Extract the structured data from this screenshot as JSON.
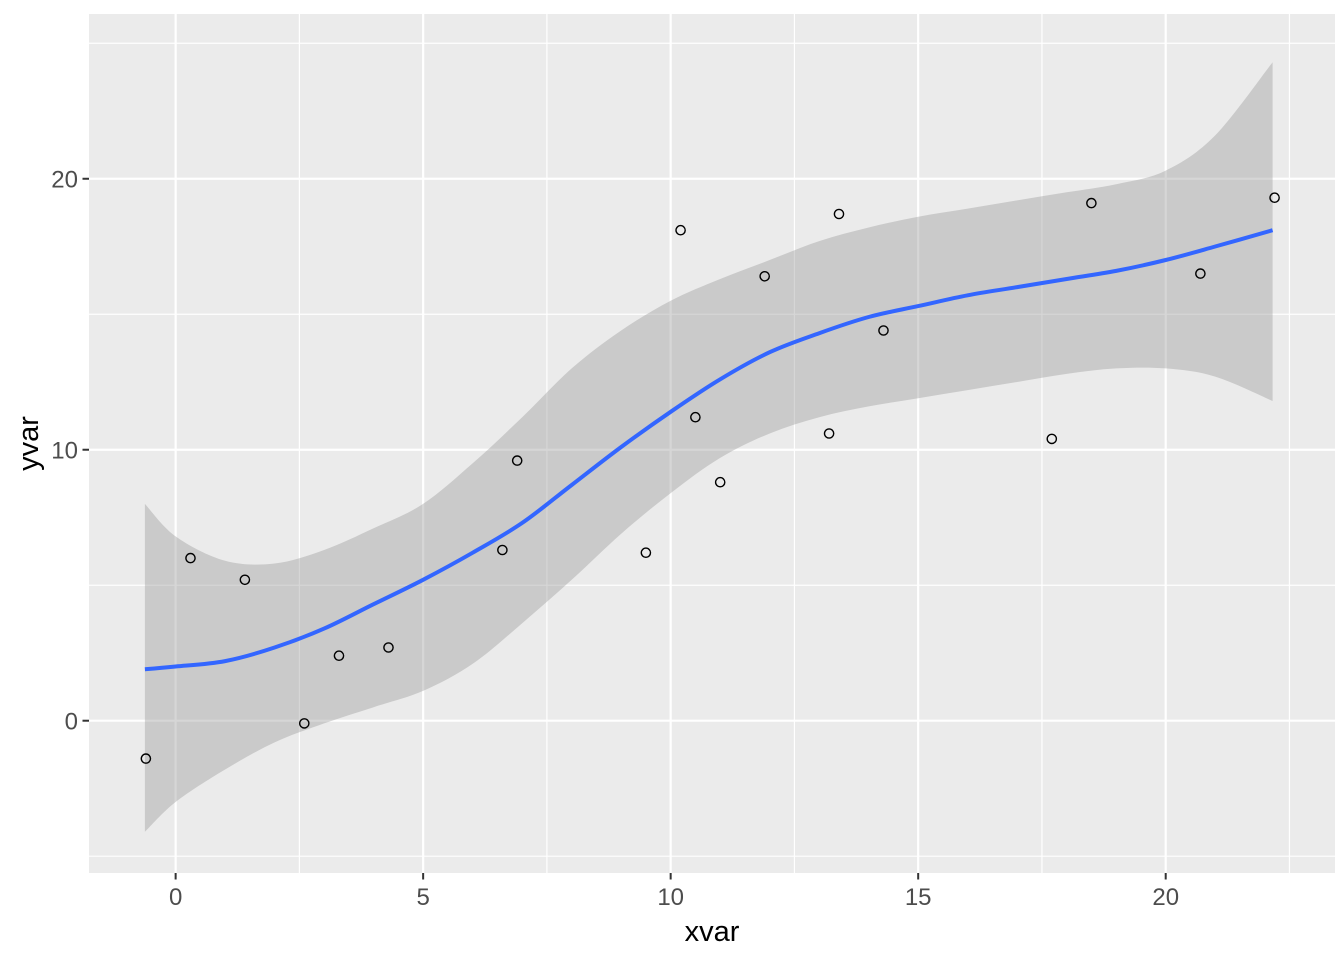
{
  "chart_data": {
    "type": "scatter",
    "subtype": "scatter-with-loess-smooth-and-confidence-band",
    "title": "",
    "xlabel": "xvar",
    "ylabel": "yvar",
    "legend": "none",
    "grid": "on",
    "xlim": [
      -1.75,
      23.42
    ],
    "ylim": [
      -5.62,
      26.08
    ],
    "x_ticks": [
      0,
      5,
      10,
      15,
      20
    ],
    "x_tick_labels": [
      "0",
      "5",
      "10",
      "15",
      "20"
    ],
    "x_minor_ticks": [
      2.5,
      7.5,
      12.5,
      17.5,
      22.5
    ],
    "y_ticks": [
      0,
      10,
      20
    ],
    "y_tick_labels": [
      "0",
      "10",
      "20"
    ],
    "y_minor_ticks": [
      -5,
      5,
      15,
      25
    ],
    "points": [
      [
        -0.6,
        -1.4
      ],
      [
        0.3,
        6.0
      ],
      [
        1.4,
        5.2
      ],
      [
        2.6,
        -0.1
      ],
      [
        3.3,
        2.4
      ],
      [
        4.3,
        2.7
      ],
      [
        6.6,
        6.3
      ],
      [
        6.9,
        9.6
      ],
      [
        9.5,
        6.2
      ],
      [
        10.2,
        18.1
      ],
      [
        10.5,
        11.2
      ],
      [
        11.0,
        8.8
      ],
      [
        11.9,
        16.4
      ],
      [
        13.2,
        10.6
      ],
      [
        13.4,
        18.7
      ],
      [
        14.3,
        14.4
      ],
      [
        17.7,
        10.4
      ],
      [
        18.5,
        19.1
      ],
      [
        20.7,
        16.5
      ],
      [
        22.2,
        19.3
      ]
    ],
    "smooth_line": {
      "x": [
        -0.62,
        0,
        1,
        2,
        3,
        4,
        5,
        6,
        7,
        8,
        9,
        10,
        11,
        12,
        13,
        14,
        15,
        16,
        17,
        18,
        19,
        20,
        21,
        22.16
      ],
      "y": [
        1.9,
        2.0,
        2.2,
        2.7,
        3.4,
        4.3,
        5.2,
        6.2,
        7.3,
        8.7,
        10.1,
        11.4,
        12.6,
        13.6,
        14.3,
        14.9,
        15.3,
        15.7,
        16.0,
        16.3,
        16.6,
        17.0,
        17.5,
        18.1
      ]
    },
    "confidence_band": {
      "x": [
        -0.62,
        0,
        1,
        2,
        3,
        4,
        5,
        6,
        7,
        8,
        9,
        10,
        11,
        12,
        13,
        14,
        15,
        16,
        17,
        18,
        19,
        20,
        21,
        22.16
      ],
      "upper": [
        8.0,
        6.8,
        5.9,
        5.8,
        6.3,
        7.1,
        8.0,
        9.5,
        11.2,
        13.0,
        14.4,
        15.5,
        16.3,
        17.0,
        17.7,
        18.2,
        18.6,
        18.9,
        19.2,
        19.5,
        19.8,
        20.3,
        21.6,
        24.3
      ],
      "lower": [
        -4.1,
        -3.0,
        -1.8,
        -0.8,
        -0.1,
        0.5,
        1.1,
        2.1,
        3.6,
        5.2,
        6.9,
        8.4,
        9.7,
        10.6,
        11.2,
        11.6,
        11.9,
        12.2,
        12.5,
        12.8,
        13.0,
        13.0,
        12.7,
        11.8
      ]
    }
  },
  "colors": {
    "outer_background": "#ffffff",
    "panel_background": "#ebebeb",
    "gridline": "#ffffff",
    "band_fill": "#999999",
    "band_opacity": 0.4,
    "smooth_line": "#3366ff",
    "point_stroke": "#000000",
    "tick_mark": "#333333",
    "tick_label": "#4d4d4d",
    "axis_title": "#000000"
  }
}
